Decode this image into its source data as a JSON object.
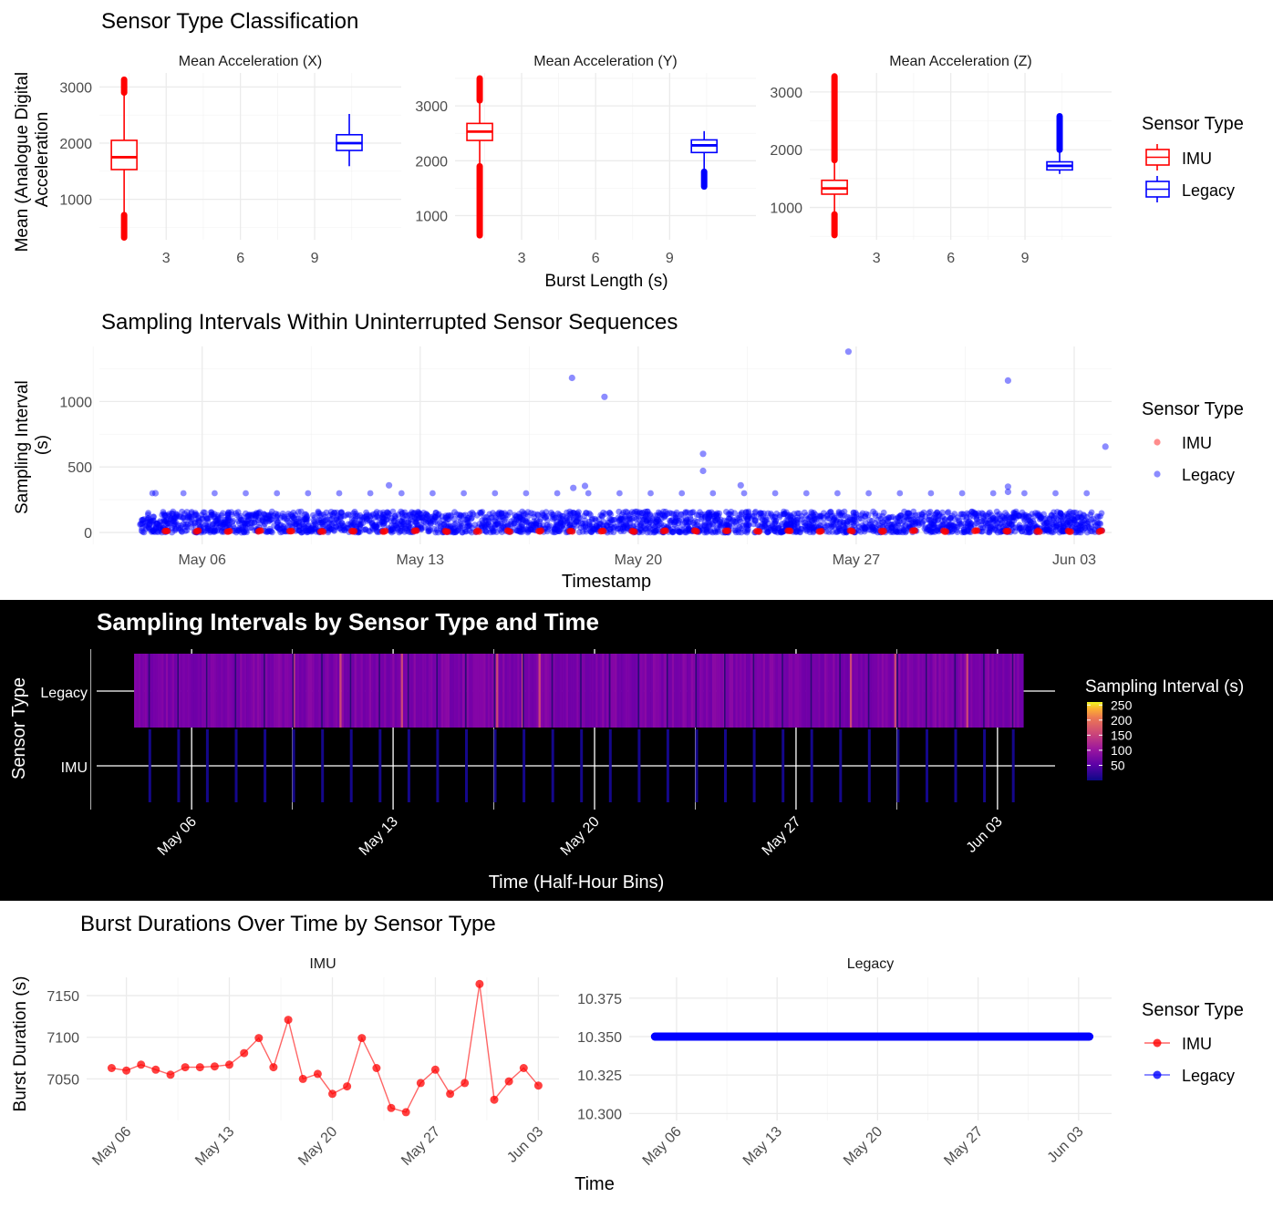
{
  "colors": {
    "imu": "#ff0000",
    "legacy": "#0000ff",
    "grid": "#ebebeb",
    "dark_bg": "#000000"
  },
  "panels": {
    "p1": {
      "title": "Sensor Type Classification",
      "ylabel_line1": "Mean (Analogue Digital",
      "ylabel_line2": "Acceleration",
      "xlabel": "Burst Length (s)",
      "legend_title": "Sensor Type"
    },
    "p2": {
      "title": "Sampling Intervals Within Uninterrupted Sensor Sequences",
      "ylabel_line1": "Sampling Interval",
      "ylabel_line2": "(s)",
      "xlabel": "Timestamp",
      "legend_title": "Sensor Type"
    },
    "p3": {
      "title": "Sampling Intervals by Sensor Type and Time",
      "ylabel": "Sensor Type",
      "xlabel": "Time (Half-Hour Bins)",
      "legend_title": "Sampling Interval (s)"
    },
    "p4": {
      "title": "Burst Durations Over Time by Sensor Type",
      "ylabel": "Burst Duration (s)",
      "xlabel": "Time",
      "legend_title": "Sensor Type"
    }
  },
  "chart_data": [
    {
      "type": "box",
      "title": "Sensor Type Classification",
      "facets": [
        {
          "name": "Mean Acceleration (X)",
          "yticks": [
            1000,
            2000,
            3000
          ],
          "ylim": [
            280,
            3250
          ],
          "boxes": [
            {
              "group": "IMU",
              "x": 1.3,
              "q1": 1530,
              "median": 1750,
              "q3": 2050,
              "whisker_low": 720,
              "whisker_high": 2900,
              "out_low": 320,
              "out_high": 3130
            },
            {
              "group": "Legacy",
              "x": 10.4,
              "q1": 1870,
              "median": 2000,
              "q3": 2150,
              "whisker_low": 1590,
              "whisker_high": 2520,
              "out_low": null,
              "out_high": null
            }
          ]
        },
        {
          "name": "Mean Acceleration (Y)",
          "yticks": [
            1000,
            2000,
            3000
          ],
          "ylim": [
            560,
            3600
          ],
          "boxes": [
            {
              "group": "IMU",
              "x": 1.3,
              "q1": 2370,
              "median": 2530,
              "q3": 2680,
              "whisker_low": 1900,
              "whisker_high": 3100,
              "out_low": 640,
              "out_high": 3500
            },
            {
              "group": "Legacy",
              "x": 10.4,
              "q1": 2150,
              "median": 2280,
              "q3": 2380,
              "whisker_low": 1800,
              "whisker_high": 2540,
              "out_low": 1530,
              "out_high": null
            }
          ]
        },
        {
          "name": "Mean Acceleration (Z)",
          "yticks": [
            1000,
            2000,
            3000
          ],
          "ylim": [
            440,
            3330
          ],
          "boxes": [
            {
              "group": "IMU",
              "x": 1.3,
              "q1": 1230,
              "median": 1330,
              "q3": 1470,
              "whisker_low": 880,
              "whisker_high": 1820,
              "out_low": 520,
              "out_high": 3270
            },
            {
              "group": "Legacy",
              "x": 10.4,
              "q1": 1650,
              "median": 1720,
              "q3": 1790,
              "whisker_low": 1580,
              "whisker_high": 2000,
              "out_low": null,
              "out_high": 2580
            }
          ]
        }
      ],
      "xticks": [
        3,
        6,
        9
      ],
      "xlim": [
        0.3,
        12.5
      ],
      "xlabel": "Burst Length (s)",
      "legend": [
        "IMU",
        "Legacy"
      ]
    },
    {
      "type": "scatter",
      "title": "Sampling Intervals Within Uninterrupted Sensor Sequences",
      "xlabel": "Timestamp",
      "ylabel": "Sampling Interval (s)",
      "xticks": [
        "May 06",
        "May 13",
        "May 20",
        "May 27",
        "Jun 03"
      ],
      "x_tick_days": [
        6,
        13,
        20,
        27,
        34
      ],
      "xlim_days": [
        2.7,
        35.2
      ],
      "yticks": [
        0,
        500,
        1000
      ],
      "ylim": [
        -90,
        1420
      ],
      "legacy_outliers": [
        {
          "date": "May 17 21:00",
          "y": 1180
        },
        {
          "date": "May 18 22:00",
          "y": 1035
        },
        {
          "date": "May 26 18:00",
          "y": 1380
        },
        {
          "date": "May 31 21:00",
          "y": 1160
        },
        {
          "date": "Jun 04 00:00",
          "y": 655
        },
        {
          "date": "May 22 02:00",
          "y": 600
        },
        {
          "date": "May 22 02:00",
          "y": 470
        },
        {
          "date": "May 12 00:00",
          "y": 360
        },
        {
          "date": "May 18 07:00",
          "y": 355
        },
        {
          "date": "May 17 22:00",
          "y": 340
        },
        {
          "date": "May 31 21:00",
          "y": 350
        },
        {
          "date": "May 31 21:00",
          "y": 310
        },
        {
          "date": "May 23 07:00",
          "y": 360
        },
        {
          "date": "May 04 12:00",
          "y": 300
        }
      ],
      "legacy_band": {
        "low": 0,
        "high": 160
      },
      "imu_band": {
        "low": 0,
        "high": 15
      },
      "legend": [
        "IMU",
        "Legacy"
      ]
    },
    {
      "type": "heatmap",
      "title": "Sampling Intervals by Sensor Type and Time",
      "xlabel": "Time (Half-Hour Bins)",
      "ylabel": "Sensor Type",
      "rows": [
        "Legacy",
        "IMU"
      ],
      "xticks": [
        "May 06",
        "May 13",
        "May 20",
        "May 27",
        "Jun 03"
      ],
      "x_tick_days": [
        6,
        13,
        20,
        27,
        34
      ],
      "xlim_days": [
        2.7,
        36.0
      ],
      "colorbar": {
        "ticks": [
          50,
          100,
          150,
          200,
          250
        ],
        "min": 0,
        "max": 260
      }
    },
    {
      "type": "line",
      "title": "Burst Durations Over Time by Sensor Type",
      "xlabel": "Time",
      "ylabel": "Burst Duration (s)",
      "xticks": [
        "May 06",
        "May 13",
        "May 20",
        "May 27",
        "Jun 03"
      ],
      "x_tick_days": [
        6,
        13,
        20,
        27,
        34
      ],
      "facets": [
        {
          "name": "IMU",
          "yticks": [
            7050,
            7100,
            7150
          ],
          "ylim": [
            7000,
            7172
          ],
          "series": {
            "name": "IMU",
            "x": [
              "May 05",
              "May 06",
              "May 07",
              "May 08",
              "May 09",
              "May 10",
              "May 11",
              "May 12",
              "May 13",
              "May 14",
              "May 15",
              "May 16",
              "May 17",
              "May 18",
              "May 19",
              "May 20",
              "May 21",
              "May 22",
              "May 23",
              "May 24",
              "May 25",
              "May 26",
              "May 27",
              "May 28",
              "May 29",
              "May 30",
              "May 31",
              "Jun 01",
              "Jun 02",
              "Jun 03"
            ],
            "values": [
              7063,
              7060,
              7067,
              7061,
              7055,
              7064,
              7064,
              7065,
              7067,
              7081,
              7099,
              7064,
              7121,
              7050,
              7056,
              7032,
              7041,
              7099,
              7063,
              7015,
              7010,
              7045,
              7061,
              7032,
              7045,
              7164,
              7025,
              7047,
              7063,
              7042
            ]
          }
        },
        {
          "name": "Legacy",
          "yticks": [
            10.3,
            10.325,
            10.35,
            10.375
          ],
          "ylim": [
            10.2955,
            10.3885
          ],
          "series": {
            "name": "Legacy",
            "x_range": [
              "May 04 12:00",
              "Jun 03 18:00"
            ],
            "value": 10.35
          }
        }
      ],
      "legend": [
        "IMU",
        "Legacy"
      ]
    }
  ]
}
